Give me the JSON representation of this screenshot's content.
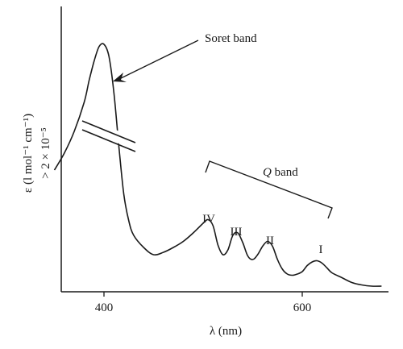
{
  "chart_data": {
    "type": "line",
    "xlabel": "λ (nm)",
    "ylabel": "ε (l mol⁻¹ cm⁻¹)",
    "ylabel_break_note": "> 2 × 10⁻⁵",
    "xlim": [
      350,
      690
    ],
    "ylim": [
      0,
      100
    ],
    "x_ticks": [
      400,
      600
    ],
    "y_ticks_shown": false,
    "axis_break": true,
    "grid": false,
    "legend": "none",
    "series": [
      {
        "x": [
          350,
          360,
          370,
          380,
          385,
          390,
          395,
          400,
          405,
          410,
          415,
          420,
          425,
          430,
          440,
          450,
          460,
          470,
          480,
          490,
          500,
          505,
          510,
          515,
          520,
          525,
          530,
          535,
          540,
          545,
          550,
          555,
          560,
          565,
          570,
          575,
          580,
          585,
          590,
          595,
          600,
          605,
          610,
          615,
          620,
          625,
          630,
          640,
          650,
          660,
          670,
          680
        ],
        "y": [
          48,
          55,
          64,
          76,
          85,
          93,
          99,
          100,
          95,
          80,
          58,
          38,
          27,
          21,
          16,
          13,
          14,
          16,
          18.5,
          22,
          26,
          27.5,
          25,
          17,
          13,
          15,
          21,
          22,
          18,
          12.5,
          11,
          13,
          16.5,
          18.5,
          16.5,
          11,
          7,
          5,
          4.5,
          5,
          6,
          8.5,
          10,
          10.5,
          9.5,
          7.5,
          5.5,
          3.5,
          1.5,
          0.5,
          0,
          0
        ]
      }
    ],
    "peak_labels": [
      "IV",
      "III",
      "II",
      "I"
    ],
    "annotations": {
      "soret": "Soret band",
      "q_italic": "Q",
      "q_rest": " band"
    }
  }
}
